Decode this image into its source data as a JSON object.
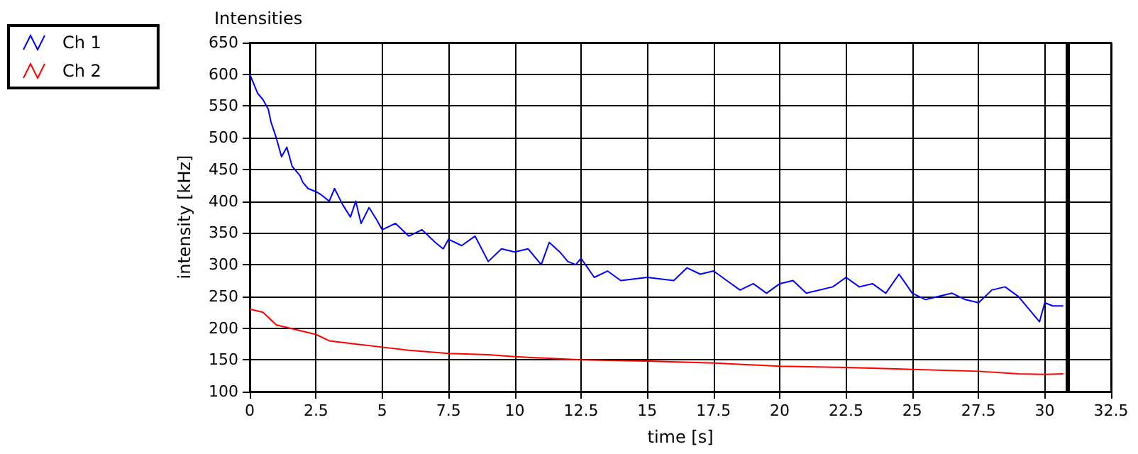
{
  "chart_data": {
    "type": "line",
    "title": "Intensities",
    "xlabel": "time [s]",
    "ylabel": "intensity [kHz]",
    "xlim": [
      0,
      32.5
    ],
    "xticks": [
      0,
      2.5,
      5,
      7.5,
      10,
      12.5,
      15,
      17.5,
      20,
      22.5,
      25,
      27.5,
      30,
      32.5
    ],
    "ylim": [
      100,
      650
    ],
    "yticks": [
      100,
      150,
      200,
      250,
      300,
      350,
      400,
      450,
      500,
      550,
      600,
      650
    ],
    "grid": true,
    "legend": "top left",
    "marker": "none",
    "line_style": "solid",
    "ref_lines": [
      {
        "axis": "x",
        "value": 30.85,
        "color": "#000000"
      }
    ],
    "series": [
      {
        "name": "Ch 1",
        "color": "#0000ff",
        "x": [
          0,
          0.1,
          0.3,
          0.5,
          0.7,
          0.8,
          1.0,
          1.2,
          1.4,
          1.6,
          1.9,
          2.0,
          2.2,
          2.5,
          2.7,
          3.0,
          3.2,
          3.5,
          3.8,
          4.0,
          4.2,
          4.5,
          4.8,
          5.0,
          5.5,
          6.0,
          6.5,
          7.0,
          7.3,
          7.5,
          8.0,
          8.5,
          9.0,
          9.5,
          10.0,
          10.5,
          11.0,
          11.3,
          11.7,
          12.0,
          12.3,
          12.5,
          13.0,
          13.5,
          14.0,
          15.0,
          16.0,
          16.5,
          17.0,
          17.5,
          18.0,
          18.5,
          19.0,
          19.5,
          20.0,
          20.5,
          21.0,
          22.0,
          22.5,
          23.0,
          23.5,
          24.0,
          24.5,
          25.0,
          25.5,
          26.0,
          26.5,
          27.0,
          27.5,
          28.0,
          28.5,
          29.0,
          29.5,
          29.8,
          30.0,
          30.3,
          30.7
        ],
        "values": [
          600,
          590,
          570,
          560,
          545,
          525,
          500,
          470,
          485,
          455,
          440,
          430,
          420,
          415,
          410,
          400,
          420,
          395,
          375,
          400,
          365,
          390,
          370,
          355,
          365,
          345,
          355,
          335,
          325,
          340,
          330,
          345,
          305,
          325,
          320,
          325,
          300,
          335,
          320,
          305,
          300,
          310,
          280,
          290,
          275,
          280,
          275,
          295,
          285,
          290,
          275,
          260,
          270,
          255,
          270,
          275,
          255,
          265,
          280,
          265,
          270,
          255,
          285,
          255,
          245,
          250,
          255,
          245,
          240,
          260,
          265,
          250,
          225,
          210,
          240,
          235,
          235
        ]
      },
      {
        "name": "Ch 2",
        "color": "#ff0000",
        "x": [
          0,
          0.5,
          1,
          2,
          2.5,
          3,
          4,
          5,
          6,
          7.5,
          9,
          10,
          12.5,
          15,
          17.5,
          20,
          22.5,
          25,
          27.5,
          29,
          30,
          30.7
        ],
        "values": [
          230,
          225,
          205,
          195,
          190,
          180,
          175,
          170,
          165,
          160,
          158,
          155,
          150,
          148,
          145,
          140,
          138,
          135,
          132,
          128,
          127,
          128
        ]
      }
    ]
  }
}
